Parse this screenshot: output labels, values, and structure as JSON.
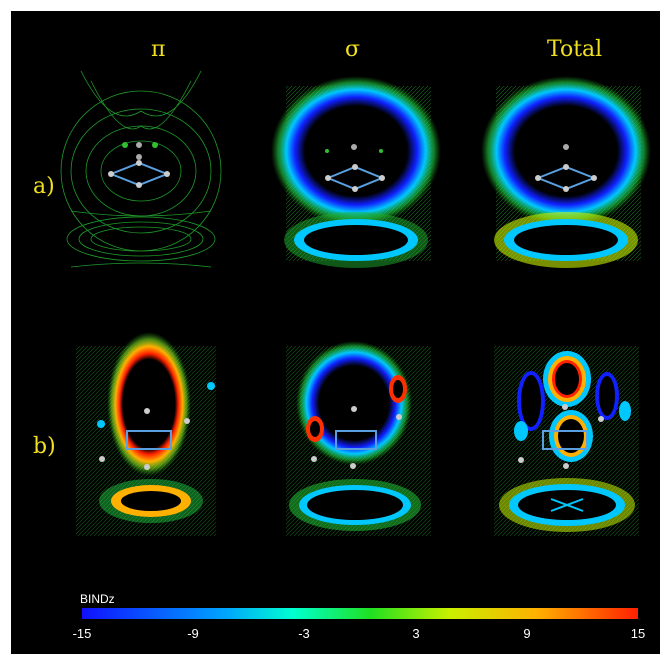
{
  "columns": [
    "π",
    "σ",
    "Total"
  ],
  "rows": [
    "a)",
    "b)"
  ],
  "colorbar": {
    "title": "BINDz",
    "ticks": [
      "-15",
      "-9",
      "-3",
      "3",
      "9",
      "15"
    ],
    "colors": [
      "#1010ff",
      "#00a0ff",
      "#00ffd0",
      "#20e020",
      "#c8f000",
      "#ffb000",
      "#ff2000"
    ]
  }
}
